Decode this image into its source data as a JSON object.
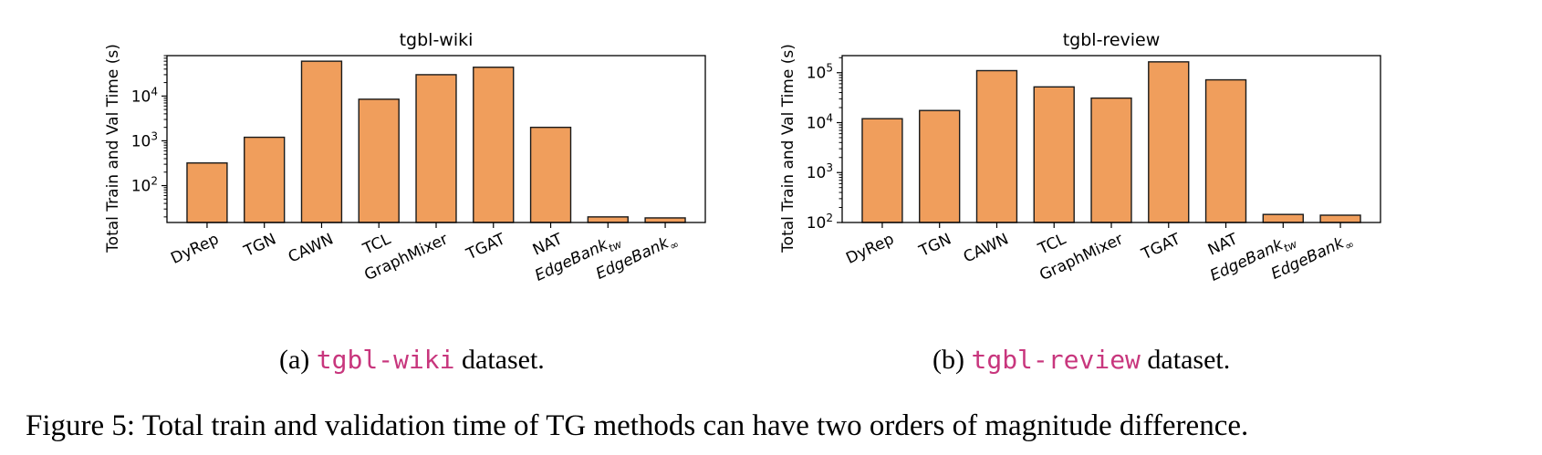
{
  "figure": {
    "caption": "Figure 5: Total train and validation time of TG methods can have two orders of magnitude difference."
  },
  "subcaptions": [
    {
      "prefix": "(a) ",
      "code": "tgbl-wiki",
      "suffix": " dataset."
    },
    {
      "prefix": "(b) ",
      "code": "tgbl-review",
      "suffix": " dataset."
    }
  ],
  "colors": {
    "bar": "#f09e5c",
    "bar_edge": "#1a1a1a"
  },
  "chart_data": [
    {
      "type": "bar",
      "title": "tgbl-wiki",
      "ylabel": "Total Train and Val Time (s)",
      "yscale": "log",
      "ylim": [
        15,
        80000
      ],
      "yticks": [
        100,
        1000,
        10000
      ],
      "ytick_labels": [
        [
          "10",
          "2"
        ],
        [
          "10",
          "3"
        ],
        [
          "10",
          "4"
        ]
      ],
      "categories": [
        "DyRep",
        "TGN",
        "CAWN",
        "TCL",
        "GraphMixer",
        "TGAT",
        "NAT",
        "EdgeBank_tw",
        "EdgeBank_∞"
      ],
      "category_labels": [
        [
          "DyRep",
          ""
        ],
        [
          "TGN",
          ""
        ],
        [
          "CAWN",
          ""
        ],
        [
          "TCL",
          ""
        ],
        [
          "GraphMixer",
          ""
        ],
        [
          "TGAT",
          ""
        ],
        [
          "NAT",
          ""
        ],
        [
          "EdgeBank",
          "tw"
        ],
        [
          "EdgeBank",
          "∞"
        ]
      ],
      "values": [
        320,
        1200,
        60000,
        8500,
        30000,
        44000,
        2000,
        20,
        19
      ],
      "grid": false,
      "legend": "none"
    },
    {
      "type": "bar",
      "title": "tgbl-review",
      "ylabel": "Total Train and Val Time (s)",
      "yscale": "log",
      "ylim": [
        100,
        220000
      ],
      "yticks": [
        100,
        1000,
        10000,
        100000
      ],
      "ytick_labels": [
        [
          "10",
          "2"
        ],
        [
          "10",
          "3"
        ],
        [
          "10",
          "4"
        ],
        [
          "10",
          "5"
        ]
      ],
      "categories": [
        "DyRep",
        "TGN",
        "CAWN",
        "TCL",
        "GraphMixer",
        "TGAT",
        "NAT",
        "EdgeBank_tw",
        "EdgeBank_∞"
      ],
      "category_labels": [
        [
          "DyRep",
          ""
        ],
        [
          "TGN",
          ""
        ],
        [
          "CAWN",
          ""
        ],
        [
          "TCL",
          ""
        ],
        [
          "GraphMixer",
          ""
        ],
        [
          "TGAT",
          ""
        ],
        [
          "NAT",
          ""
        ],
        [
          "EdgeBank",
          "tw"
        ],
        [
          "EdgeBank",
          "∞"
        ]
      ],
      "values": [
        12000,
        17500,
        110000,
        52000,
        31000,
        165000,
        72000,
        145,
        140
      ],
      "grid": false,
      "legend": "none"
    }
  ]
}
